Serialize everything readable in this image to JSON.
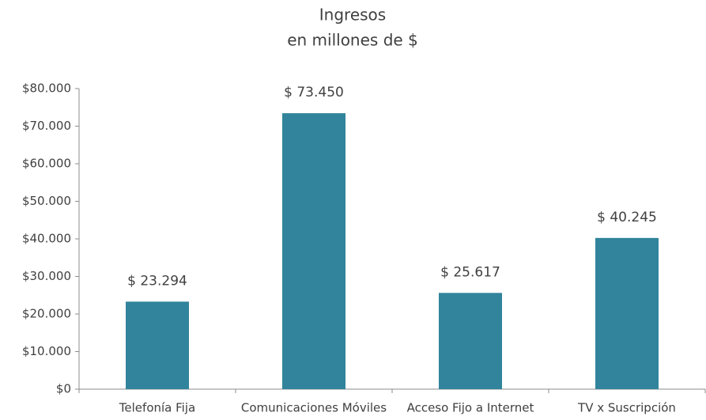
{
  "chart_data": {
    "type": "bar",
    "title": "Ingresos",
    "subtitle": "en millones de $",
    "categories": [
      "Telefonía Fija",
      "Comunicaciones Móviles",
      "Acceso Fijo a Internet",
      "TV x Suscripción"
    ],
    "values": [
      23294,
      73450,
      25617,
      40245
    ],
    "value_labels": [
      "$ 23.294",
      "$ 73.450",
      "$ 25.617",
      "$ 40.245"
    ],
    "color": "#31849b",
    "ylim": [
      0,
      80000
    ],
    "yticks": [
      {
        "value": 0,
        "label": "$0"
      },
      {
        "value": 10000,
        "label": "$10.000"
      },
      {
        "value": 20000,
        "label": "$20.000"
      },
      {
        "value": 30000,
        "label": "$30.000"
      },
      {
        "value": 40000,
        "label": "$40.000"
      },
      {
        "value": 50000,
        "label": "$50.000"
      },
      {
        "value": 60000,
        "label": "$60.000"
      },
      {
        "value": 70000,
        "label": "$70.000"
      },
      {
        "value": 80000,
        "label": "$80.000"
      }
    ],
    "grid": false
  }
}
